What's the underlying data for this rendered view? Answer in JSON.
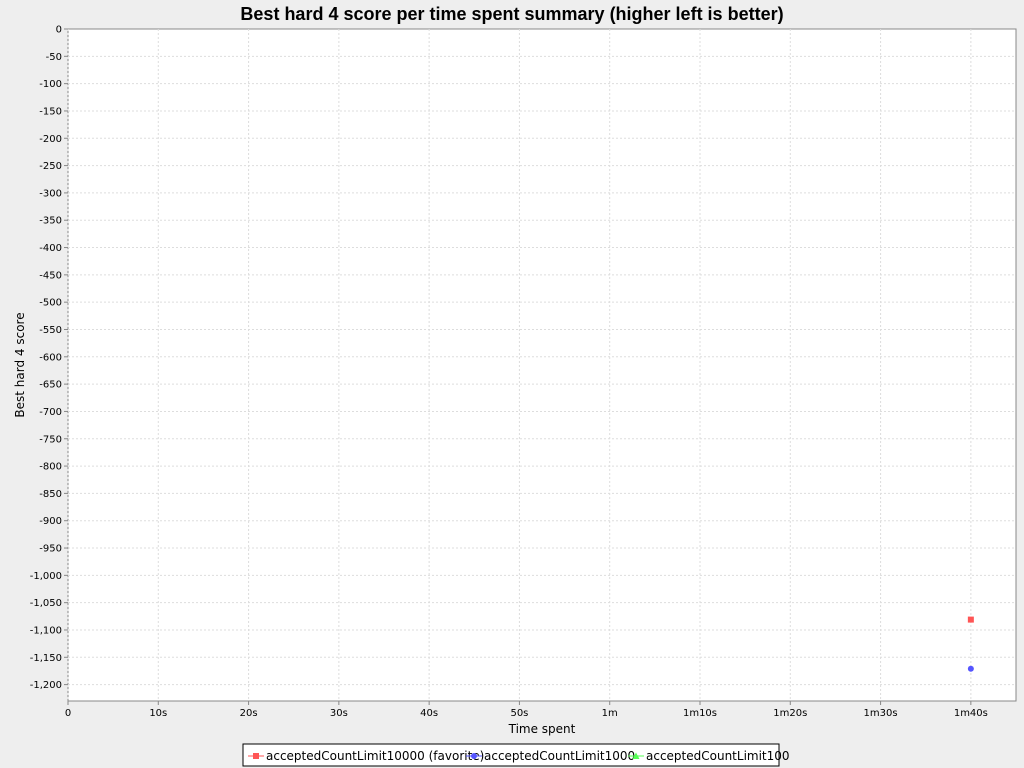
{
  "chart_data": {
    "type": "scatter",
    "title": "Best hard 4 score per time spent summary (higher left is better)",
    "xlabel": "Time spent",
    "ylabel": "Best hard 4 score",
    "xlim": [
      0,
      105
    ],
    "ylim": [
      -1230,
      0
    ],
    "x_ticks": [
      {
        "value": 0,
        "label": "0"
      },
      {
        "value": 10,
        "label": "10s"
      },
      {
        "value": 20,
        "label": "20s"
      },
      {
        "value": 30,
        "label": "30s"
      },
      {
        "value": 40,
        "label": "40s"
      },
      {
        "value": 50,
        "label": "50s"
      },
      {
        "value": 60,
        "label": "1m"
      },
      {
        "value": 70,
        "label": "1m10s"
      },
      {
        "value": 80,
        "label": "1m20s"
      },
      {
        "value": 90,
        "label": "1m30s"
      },
      {
        "value": 100,
        "label": "1m40s"
      }
    ],
    "y_ticks": [
      {
        "value": 0,
        "label": "0"
      },
      {
        "value": -50,
        "label": "-50"
      },
      {
        "value": -100,
        "label": "-100"
      },
      {
        "value": -150,
        "label": "-150"
      },
      {
        "value": -200,
        "label": "-200"
      },
      {
        "value": -250,
        "label": "-250"
      },
      {
        "value": -300,
        "label": "-300"
      },
      {
        "value": -350,
        "label": "-350"
      },
      {
        "value": -400,
        "label": "-400"
      },
      {
        "value": -450,
        "label": "-450"
      },
      {
        "value": -500,
        "label": "-500"
      },
      {
        "value": -550,
        "label": "-550"
      },
      {
        "value": -600,
        "label": "-600"
      },
      {
        "value": -650,
        "label": "-650"
      },
      {
        "value": -700,
        "label": "-700"
      },
      {
        "value": -750,
        "label": "-750"
      },
      {
        "value": -800,
        "label": "-800"
      },
      {
        "value": -850,
        "label": "-850"
      },
      {
        "value": -900,
        "label": "-900"
      },
      {
        "value": -950,
        "label": "-950"
      },
      {
        "value": -1000,
        "label": "-1,000"
      },
      {
        "value": -1050,
        "label": "-1,050"
      },
      {
        "value": -1100,
        "label": "-1,100"
      },
      {
        "value": -1150,
        "label": "-1,150"
      },
      {
        "value": -1200,
        "label": "-1,200"
      }
    ],
    "grid": true,
    "legend_position": "bottom",
    "series": [
      {
        "name": "acceptedCountLimit10000 (favorite)",
        "color": "#ff5555",
        "marker": "square",
        "points": [
          {
            "x": 100,
            "y": -1081
          }
        ]
      },
      {
        "name": "acceptedCountLimit1000",
        "color": "#5555ff",
        "marker": "circle",
        "points": [
          {
            "x": 100,
            "y": -1171
          }
        ]
      },
      {
        "name": "acceptedCountLimit100",
        "color": "#55ff55",
        "marker": "triangle",
        "points": []
      }
    ]
  }
}
